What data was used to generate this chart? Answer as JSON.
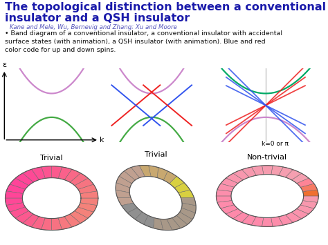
{
  "title_line1": "The topological distinction between a conventional",
  "title_line2": "insulator and a QSH insulator",
  "title_color": "#1a1aaa",
  "subtitle": "Kane and Mele, Wu, Bernevig and Zhang; Xu and Moore",
  "subtitle_color": "#5555bb",
  "body_text": "• Band diagram of a conventional insulator, a conventional insulator with accidental\nsurface states (with animation), a QSH insulator (with animation). Blue and red\ncolor code for up and down spins.",
  "body_color": "#111111",
  "bg_color": "#ffffff",
  "upper_band_color": "#cc88cc",
  "upper_band_color2": "#44aaaa",
  "lower_band_color": "#44aa44",
  "surface_blue": "#3355ee",
  "surface_red": "#ee2222",
  "qsh_blue": "#3355ee",
  "qsh_red": "#ee2222",
  "qsh_green": "#00aa66",
  "epsilon_label": "ε",
  "k_label": "k",
  "k0pi_label": "k=0 or π",
  "label_trivial1": "Trivial",
  "label_trivial2": "Trivial",
  "label_nontrivial": "Non-trivial",
  "ring1_color1": "#f4827a",
  "ring1_color2": "#ff4499",
  "ring2_color1": "#c8a080",
  "ring2_color2": "#e8d060",
  "ring2_color3": "#888888",
  "ring3_color1": "#f4a0b0",
  "ring3_color2": "#ff88aa"
}
